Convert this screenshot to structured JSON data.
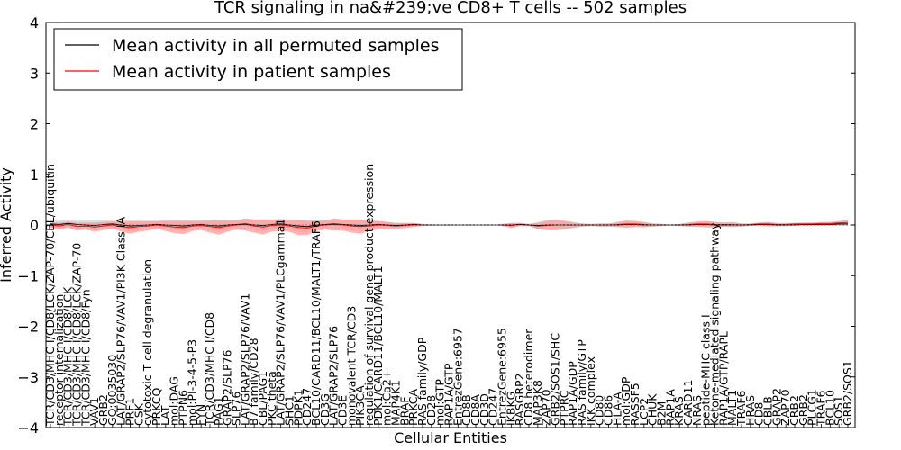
{
  "chart_data": {
    "type": "line",
    "title": "TCR signaling in na&#239;ve CD8+ T cells -- 502 samples",
    "xlabel": "Cellular Entities",
    "ylabel": "Inferred Activity",
    "ylim": [
      -4,
      4
    ],
    "yticks": [
      "−4",
      "−3",
      "−2",
      "−1",
      "0",
      "1",
      "2",
      "3",
      "4"
    ],
    "grid": false,
    "legend_position": "top-left",
    "colors": {
      "permuted": "#000000",
      "patient": "#ff0000",
      "patient_band": "#ff9a9a",
      "permuted_band": "#c8c8c8"
    },
    "categories": [
      "TCR/CD3/MHC I/CD8/LCK/ZAP-70/CBL/ubiquitin",
      "receptor internalization",
      "TCR/CD3/MHC I/CD8/LCK",
      "TCR/CD3/MHC I/CD8/LCK/ZAP-70",
      "TCR/CD3/MHC I/CD8/Fyn",
      "VAV1",
      "GRB2",
      "GO:0035030",
      "LAT/GRAP2/SLP76/VAV1/PI3K Class IA",
      "PRF1",
      "CSK",
      "cytotoxic T cell degranulation",
      "PRKCQ",
      "LAT",
      "mol:DAG",
      "PTPN6",
      "mol:PI-3-4-5-P3",
      "FYN",
      "TCR/CD3/MHC I/CD8",
      "PAG1",
      "GRAP2/SLP76",
      "SLP76",
      "LAT/GRAP2/SLP76/VAV1",
      "B7 family/CD28",
      "CBL/PAG1",
      "PKC theta",
      "LAT/GRAP2/SLP76/VAV1/PLCgamma1",
      "SHC1",
      "PDPK1",
      "CD247",
      "BCL10/CARD11/BCL10/MALT1/TRAF6",
      "CD3G",
      "LAT/GRAP2/SLP76",
      "CD3E",
      "monovalent TCR/CD3",
      "PIK3CA",
      "regulation of survival gene product expression",
      "PDK1/CARD11/BCL10/MALT1",
      "mol:Ca2+",
      "MAP4K1",
      "BRAF",
      "PRKCA",
      "RAS family/GDP",
      "CD28",
      "mol:GTP",
      "RAP1A/GTP",
      "EntrezGene:6957",
      "CD8B",
      "CD8A",
      "CD3D",
      "CD247",
      "EntrezGene:6955",
      "IKBKG",
      "RASGRP2",
      "CD8 heterodimer",
      "MAP3K8",
      "ZAP70",
      "GRB2/SOS1/SHC",
      "PTPRC",
      "RAP1A/GDP",
      "RAS family/GTP",
      "IKK complex",
      "CD80",
      "CD86",
      "HLA-A",
      "mol:GDP",
      "RASSF5",
      "LCP2",
      "CHUK",
      "B2M",
      "RAP1A",
      "KRAS",
      "CARD11",
      "NRAS",
      "peptide-MHC class I",
      "Ketone-mediated signaling pathway",
      "RAP1A/GTP/RAPL",
      "MALT1",
      "TRAF6",
      "HRAS",
      "CD8",
      "CBLB",
      "GRAP2",
      "ZAP70",
      "CRB2",
      "GRB2",
      "PLCG1",
      "TRAF6",
      "BCL10",
      "SOS1",
      "GRB2/SOS1"
    ],
    "series": [
      {
        "name": "Mean activity in all permuted samples",
        "values": [
          0.02,
          0.01,
          0.03,
          0.01,
          0.0,
          -0.01,
          0.01,
          0.02,
          0.0,
          -0.02,
          -0.01,
          0.0,
          0.01,
          0.0,
          -0.01,
          -0.02,
          0.0,
          0.01,
          -0.01,
          -0.02,
          0.0,
          0.01,
          0.02,
          0.0,
          -0.01,
          0.01,
          0.02,
          0.0,
          -0.02,
          -0.03,
          0.0,
          0.01,
          0.02,
          0.01,
          0.0,
          -0.01,
          0.0,
          0.01,
          0.0,
          -0.01,
          0.0,
          0.01,
          0.0,
          0.0,
          0.0,
          0.0,
          0.0,
          0.0,
          0.0,
          0.0,
          0.0,
          0.0,
          0.0,
          0.01,
          0.0,
          -0.01,
          0.0,
          0.0,
          0.0,
          0.0,
          0.0,
          0.0,
          0.0,
          0.0,
          0.0,
          0.01,
          0.01,
          0.0,
          0.0,
          0.0,
          0.0,
          0.0,
          0.0,
          0.01,
          0.01,
          0.0,
          0.0,
          0.0,
          0.0,
          0.0,
          0.01,
          0.01,
          0.0,
          0.0,
          0.0,
          0.01,
          0.01,
          0.01,
          0.01,
          0.02,
          0.02
        ]
      },
      {
        "name": "Mean activity in patient samples",
        "values": [
          0.0,
          -0.02,
          0.01,
          -0.03,
          -0.02,
          -0.04,
          -0.02,
          0.0,
          -0.03,
          -0.05,
          -0.03,
          -0.02,
          0.0,
          -0.02,
          -0.04,
          -0.05,
          -0.02,
          -0.01,
          -0.03,
          -0.05,
          -0.02,
          0.0,
          0.01,
          -0.02,
          -0.04,
          -0.01,
          0.0,
          -0.02,
          -0.05,
          -0.06,
          -0.02,
          0.0,
          0.01,
          0.0,
          -0.02,
          -0.03,
          -0.02,
          0.0,
          -0.01,
          -0.02,
          -0.01,
          0.0,
          0.0,
          0.0,
          0.0,
          0.0,
          0.0,
          0.0,
          0.0,
          0.0,
          0.0,
          0.0,
          -0.01,
          0.01,
          0.0,
          -0.02,
          -0.01,
          0.0,
          0.0,
          0.0,
          0.0,
          0.0,
          0.0,
          0.0,
          0.01,
          0.02,
          0.02,
          0.01,
          0.0,
          0.0,
          0.0,
          0.0,
          0.01,
          0.02,
          0.02,
          0.01,
          0.01,
          0.01,
          0.0,
          0.01,
          0.02,
          0.02,
          0.01,
          0.01,
          0.02,
          0.02,
          0.02,
          0.03,
          0.03,
          0.04,
          0.05
        ]
      }
    ],
    "patient_spread": [
      0.05,
      0.07,
      0.06,
      0.08,
      0.07,
      0.09,
      0.08,
      0.07,
      0.1,
      0.12,
      0.1,
      0.09,
      0.07,
      0.1,
      0.12,
      0.13,
      0.1,
      0.09,
      0.12,
      0.14,
      0.11,
      0.09,
      0.12,
      0.13,
      0.15,
      0.12,
      0.11,
      0.12,
      0.15,
      0.14,
      0.1,
      0.09,
      0.12,
      0.11,
      0.13,
      0.14,
      0.1,
      0.08,
      0.07,
      0.06,
      0.05,
      0.04,
      0.02,
      0.01,
      0.01,
      0.01,
      0.0,
      0.0,
      0.0,
      0.0,
      0.0,
      0.02,
      0.05,
      0.03,
      0.02,
      0.06,
      0.09,
      0.1,
      0.08,
      0.05,
      0.03,
      0.02,
      0.03,
      0.03,
      0.05,
      0.07,
      0.06,
      0.05,
      0.03,
      0.02,
      0.01,
      0.02,
      0.04,
      0.05,
      0.06,
      0.05,
      0.04,
      0.05,
      0.03,
      0.02,
      0.03,
      0.04,
      0.03,
      0.03,
      0.02,
      0.03,
      0.03,
      0.03,
      0.03,
      0.04,
      0.05
    ],
    "permuted_spread": [
      0.06,
      0.08,
      0.07,
      0.08,
      0.09,
      0.1,
      0.09,
      0.08,
      0.1,
      0.11,
      0.1,
      0.09,
      0.08,
      0.09,
      0.1,
      0.11,
      0.1,
      0.09,
      0.1,
      0.12,
      0.1,
      0.09,
      0.1,
      0.11,
      0.12,
      0.1,
      0.1,
      0.1,
      0.12,
      0.12,
      0.09,
      0.08,
      0.1,
      0.1,
      0.11,
      0.11,
      0.09,
      0.07,
      0.06,
      0.05,
      0.04,
      0.03,
      0.02,
      0.01,
      0.01,
      0.01,
      0.0,
      0.0,
      0.0,
      0.0,
      0.0,
      0.02,
      0.04,
      0.03,
      0.02,
      0.07,
      0.1,
      0.11,
      0.09,
      0.06,
      0.03,
      0.02,
      0.03,
      0.03,
      0.04,
      0.06,
      0.05,
      0.05,
      0.03,
      0.02,
      0.01,
      0.02,
      0.03,
      0.05,
      0.06,
      0.06,
      0.04,
      0.04,
      0.03,
      0.02,
      0.03,
      0.04,
      0.03,
      0.03,
      0.02,
      0.03,
      0.03,
      0.03,
      0.03,
      0.03,
      0.04
    ]
  }
}
